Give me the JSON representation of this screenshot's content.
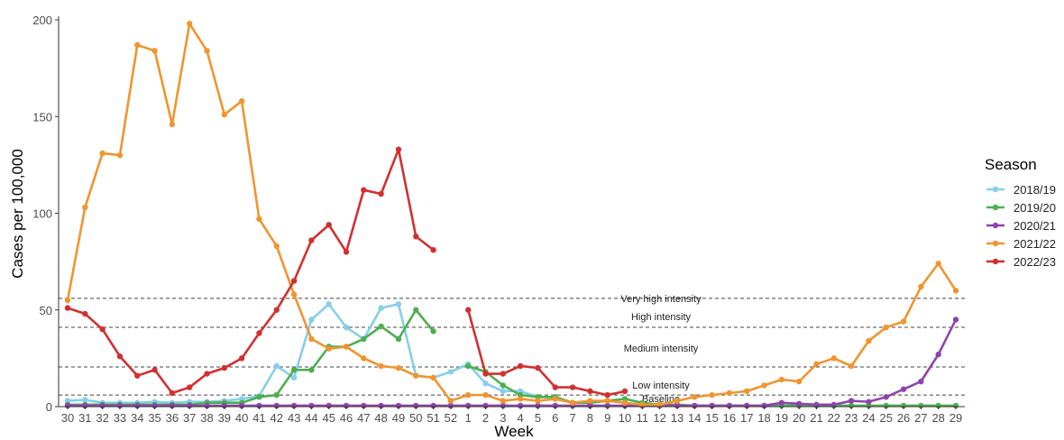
{
  "chart_data": {
    "type": "line",
    "xlabel": "Week",
    "ylabel": "Cases per 100,000",
    "ylim": [
      0,
      200
    ],
    "yticks": [
      0,
      50,
      100,
      150,
      200
    ],
    "grid": false,
    "legend_title": "Season",
    "legend_position": "right",
    "categories": [
      "30",
      "31",
      "32",
      "33",
      "34",
      "35",
      "36",
      "37",
      "38",
      "39",
      "40",
      "41",
      "42",
      "43",
      "44",
      "45",
      "46",
      "47",
      "48",
      "49",
      "50",
      "51",
      "52",
      "1",
      "2",
      "3",
      "4",
      "5",
      "6",
      "7",
      "8",
      "9",
      "10",
      "11",
      "12",
      "13",
      "14",
      "15",
      "16",
      "17",
      "18",
      "19",
      "20",
      "21",
      "22",
      "23",
      "24",
      "25",
      "26",
      "27",
      "28",
      "29"
    ],
    "thresholds": [
      {
        "label": "Very high intensity",
        "value": 56
      },
      {
        "label": "High intensity",
        "value": 41
      },
      {
        "label": "Medium intensity",
        "value": 20.5
      },
      {
        "label": "Low intensity",
        "value": 6
      },
      {
        "label": "Baseline",
        "value": 6
      }
    ],
    "series": [
      {
        "name": "2018/19",
        "color": "#87CEEB",
        "values": [
          3,
          3.5,
          2,
          2,
          2,
          2.5,
          2,
          2.5,
          2.5,
          3,
          4,
          5.5,
          21,
          15,
          45,
          53,
          41,
          35,
          51,
          53,
          16,
          15,
          18,
          22,
          12,
          8,
          8,
          5,
          5,
          null,
          null,
          null,
          null,
          null,
          null,
          null,
          null,
          null,
          null,
          null,
          null,
          null,
          null,
          null,
          null,
          null,
          null,
          null,
          null,
          null,
          null,
          null
        ]
      },
      {
        "name": "2019/20",
        "color": "#4CAF50",
        "values": [
          1,
          1,
          1,
          1,
          1,
          1,
          1,
          1,
          2,
          2,
          2,
          5,
          6,
          19,
          19,
          31,
          31,
          35,
          41.5,
          35,
          50,
          39,
          null,
          21,
          18,
          11,
          6,
          5,
          5,
          2,
          2,
          3,
          4,
          2,
          1,
          1,
          0.5,
          0.5,
          0.5,
          0.5,
          0.5,
          0.5,
          0.5,
          0.5,
          0.5,
          0.5,
          0.5,
          0.5,
          0.5,
          0.5,
          0.5,
          0.5
        ]
      },
      {
        "name": "2020/21",
        "color": "#8E44AD",
        "values": [
          0.5,
          0.5,
          0.5,
          0.5,
          0.5,
          0.5,
          0.5,
          0.5,
          0.5,
          0.5,
          0.5,
          0.5,
          0.5,
          0.5,
          0.5,
          0.5,
          0.5,
          0.5,
          0.5,
          0.5,
          0.5,
          0.5,
          0.5,
          0.5,
          0.5,
          0.5,
          0.5,
          0.5,
          0.5,
          0.5,
          0.5,
          0.5,
          0.5,
          0.5,
          0.5,
          0.5,
          0.5,
          0.5,
          0.5,
          0.5,
          0.5,
          2,
          1.5,
          1,
          1,
          3,
          2.5,
          5,
          9,
          13,
          27,
          45
        ]
      },
      {
        "name": "2021/22",
        "color": "#F0952E",
        "values": [
          55,
          103,
          131,
          130,
          187,
          184,
          146,
          198,
          184,
          151,
          158,
          97,
          83,
          58,
          35,
          30,
          31,
          25,
          21,
          20,
          16,
          15,
          3,
          6,
          6,
          3,
          4,
          3,
          4,
          2,
          3,
          3,
          2,
          1,
          1,
          3,
          5,
          6,
          7,
          8,
          11,
          14,
          13,
          22,
          25,
          21,
          34,
          41,
          44,
          62,
          74,
          60
        ]
      },
      {
        "name": "2022/23",
        "color": "#D32F2F",
        "values": [
          51,
          48,
          40,
          26,
          16,
          19,
          7,
          10,
          17,
          20,
          25,
          38,
          50,
          65,
          86,
          94,
          80,
          112,
          110,
          133,
          88,
          81,
          null,
          50,
          17,
          17,
          21,
          20,
          10,
          10,
          8,
          6,
          8,
          null,
          null,
          null,
          null,
          null,
          null,
          null,
          null,
          null,
          null,
          null,
          null,
          null,
          null,
          null,
          null,
          null,
          null,
          null
        ]
      }
    ]
  }
}
